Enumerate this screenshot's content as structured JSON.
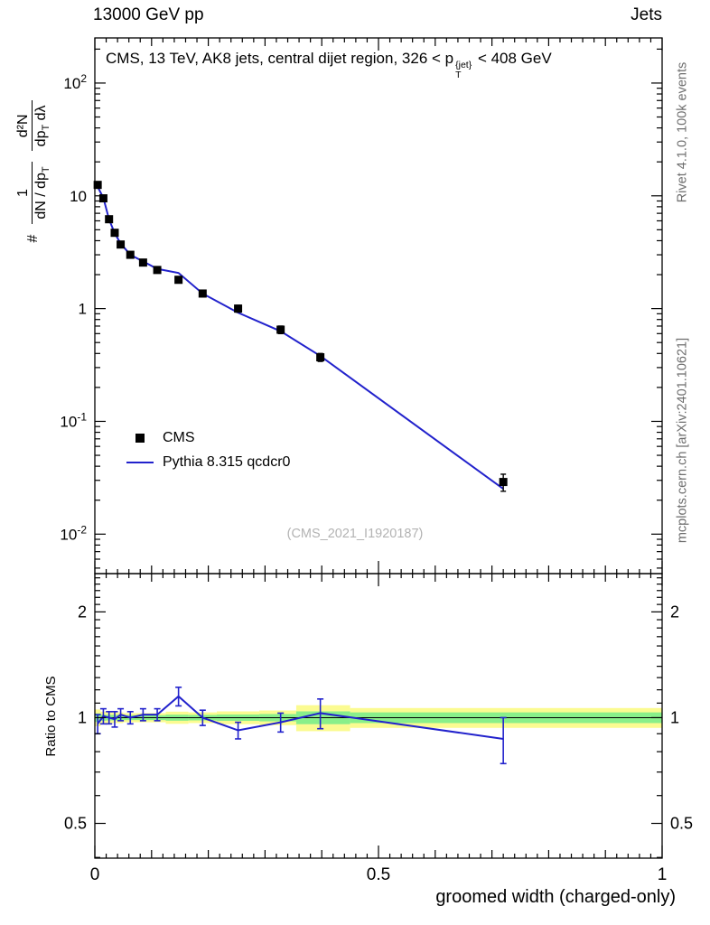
{
  "header": {
    "left": "13000 GeV pp",
    "right": "Jets"
  },
  "title": {
    "pre": "CMS, 13 TeV, AK8 jets, central dijet region, 326 < p",
    "p_sup": "{jet}",
    "p_sub": "T",
    "post": " < 408 GeV"
  },
  "y_axis_label": {
    "prefix": "#",
    "frac1_num": "1",
    "frac1_den_main": "dN / dp",
    "frac1_den_sub": "T",
    "frac2_num": "d²N",
    "frac2_den_main": "dp",
    "frac2_den_sub": "T",
    "frac2_den_tail": " dλ"
  },
  "ratio_label": "Ratio to CMS",
  "side_labels": {
    "right_top": "Rivet 4.1.0, 100k events",
    "right_bottom": "mcplots.cern.ch [arXiv:2401.10621]"
  },
  "watermark": "(CMS_2021_I1920187)",
  "chart_data": {
    "type": "line",
    "title": "CMS, 13 TeV, AK8 jets, central dijet region, 326 < pT{jet} < 408 GeV",
    "xlabel": "groomed width (charged-only)",
    "ylabel": "# 1/(dN/dpT) d²N/(dpT dλ)",
    "ratio_ylabel": "Ratio to CMS",
    "legend_position": "left-middle",
    "xlim": [
      0,
      1
    ],
    "ylog_range": [
      -2.35,
      2.4
    ],
    "ratio_log_range": [
      -0.4,
      0.41
    ],
    "x": [
      0.005,
      0.015,
      0.025,
      0.035,
      0.0455,
      0.0625,
      0.085,
      0.11,
      0.1475,
      0.19,
      0.2525,
      0.3275,
      0.3975,
      0.72
    ],
    "series": [
      {
        "name": "CMS",
        "type": "scatter",
        "marker": "square",
        "color": "#000000",
        "values": [
          12.5,
          9.5,
          6.2,
          4.7,
          3.7,
          3.0,
          2.56,
          2.2,
          1.8,
          1.36,
          1.0,
          0.65,
          0.37,
          0.029
        ],
        "errors": [
          0.7,
          0.5,
          0.35,
          0.28,
          0.22,
          0.18,
          0.15,
          0.13,
          0.11,
          0.09,
          0.07,
          0.05,
          0.03,
          0.005
        ]
      },
      {
        "name": "Pythia 8.315 qcdcr0",
        "type": "line",
        "color": "#2222cc",
        "values": [
          12.0,
          9.6,
          6.2,
          4.65,
          3.78,
          3.0,
          2.62,
          2.25,
          2.07,
          1.36,
          0.92,
          0.63,
          0.38,
          0.0252
        ]
      }
    ],
    "ratio": {
      "values": [
        0.96,
        1.01,
        1.0,
        0.99,
        1.02,
        1.0,
        1.02,
        1.02,
        1.15,
        1.0,
        0.92,
        0.97,
        1.03,
        0.87
      ],
      "errors": [
        0.06,
        0.05,
        0.04,
        0.05,
        0.04,
        0.04,
        0.04,
        0.04,
        0.07,
        0.05,
        0.05,
        0.06,
        0.1,
        0.13
      ]
    },
    "ratio_bands": [
      {
        "x0": 0.0,
        "x1": 0.01,
        "yellow": 0.055,
        "green": 0.028
      },
      {
        "x0": 0.01,
        "x1": 0.02,
        "yellow": 0.04,
        "green": 0.02
      },
      {
        "x0": 0.02,
        "x1": 0.05,
        "yellow": 0.035,
        "green": 0.018
      },
      {
        "x0": 0.05,
        "x1": 0.125,
        "yellow": 0.03,
        "green": 0.016
      },
      {
        "x0": 0.125,
        "x1": 0.165,
        "yellow": 0.04,
        "green": 0.02
      },
      {
        "x0": 0.165,
        "x1": 0.215,
        "yellow": 0.035,
        "green": 0.018
      },
      {
        "x0": 0.215,
        "x1": 0.29,
        "yellow": 0.042,
        "green": 0.021
      },
      {
        "x0": 0.29,
        "x1": 0.355,
        "yellow": 0.048,
        "green": 0.024
      },
      {
        "x0": 0.355,
        "x1": 0.45,
        "yellow": 0.085,
        "green": 0.042
      },
      {
        "x0": 0.45,
        "x1": 1.0,
        "yellow": 0.065,
        "green": 0.035
      }
    ],
    "x_ticks": [
      {
        "value": 0,
        "label": "0"
      },
      {
        "value": 0.5,
        "label": "0.5"
      },
      {
        "value": 1,
        "label": "1"
      }
    ],
    "main_y_ticks": [
      {
        "value": 100,
        "base": "10",
        "sup": "2"
      },
      {
        "value": 10,
        "base": "10",
        "sup": ""
      },
      {
        "value": 1,
        "base": "1",
        "sup": ""
      },
      {
        "value": 0.1,
        "base": "10",
        "sup": "-1"
      },
      {
        "value": 0.01,
        "base": "10",
        "sup": "-2"
      }
    ],
    "ratio_y_ticks": [
      {
        "value": 2,
        "label": "2"
      },
      {
        "value": 1,
        "label": "1"
      },
      {
        "value": 0.5,
        "label": "0.5"
      }
    ],
    "colors": {
      "line": "#2222cc",
      "marker": "#000000",
      "band_yellow": "#fbfb91",
      "band_green": "#89ef8a",
      "ref_line": "#000000"
    }
  }
}
